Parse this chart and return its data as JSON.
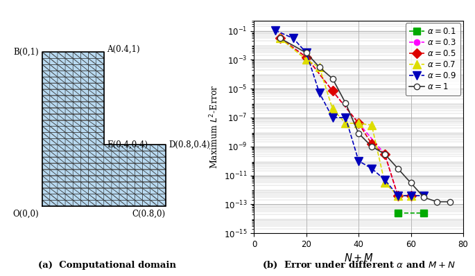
{
  "left_panel": {
    "mesh_color": "#b8d9f0",
    "mesh_edge_color": "#2a2a2a",
    "caption": "(a)  Computational domain"
  },
  "right_panel": {
    "series": [
      {
        "label": "$\\alpha = 0.1$",
        "color": "#00aa00",
        "marker": "s",
        "linestyle": "--",
        "x": [
          55,
          65
        ],
        "y": [
          2.5e-14,
          2.5e-14
        ],
        "mfc": "#00aa00"
      },
      {
        "label": "$\\alpha = 0.3$",
        "color": "#ff00ff",
        "marker": "o",
        "linestyle": "--",
        "x": [
          10,
          20,
          30,
          40,
          50,
          55,
          60
        ],
        "y": [
          0.03,
          0.0015,
          7e-06,
          4e-08,
          3e-10,
          4e-13,
          4e-13
        ],
        "mfc": "#ff00ff"
      },
      {
        "label": "$\\alpha = 0.5$",
        "color": "#dd0000",
        "marker": "D",
        "linestyle": "--",
        "x": [
          10,
          20,
          30,
          40,
          45,
          50,
          55,
          60
        ],
        "y": [
          0.03,
          0.0015,
          7e-06,
          4e-08,
          1.5e-09,
          3e-10,
          4e-13,
          4e-13
        ],
        "mfc": "#dd0000"
      },
      {
        "label": "$\\alpha = 0.7$",
        "color": "#dddd00",
        "marker": "^",
        "linestyle": "--",
        "x": [
          10,
          20,
          25,
          30,
          35,
          40,
          45,
          50,
          55,
          60
        ],
        "y": [
          0.03,
          0.001,
          0.0003,
          4e-07,
          4e-08,
          4e-08,
          3e-08,
          3e-12,
          4e-13,
          4e-13
        ],
        "mfc": "#dddd00"
      },
      {
        "label": "$\\alpha = 0.9$",
        "color": "#0000bb",
        "marker": "v",
        "linestyle": "--",
        "x": [
          8,
          15,
          20,
          25,
          30,
          35,
          40,
          45,
          50,
          55,
          60,
          65
        ],
        "y": [
          0.11,
          0.03,
          0.003,
          5e-06,
          1e-07,
          1e-07,
          1e-10,
          3e-11,
          5e-12,
          4e-13,
          4e-13,
          4e-13
        ],
        "mfc": "#0000bb"
      },
      {
        "label": "$\\alpha = 1$",
        "color": "#333333",
        "marker": "o",
        "linestyle": "-",
        "x": [
          10,
          20,
          25,
          30,
          35,
          40,
          45,
          50,
          55,
          60,
          65,
          70,
          75
        ],
        "y": [
          0.03,
          0.003,
          0.0003,
          5e-05,
          1e-06,
          8e-09,
          1e-09,
          3e-10,
          3e-11,
          3e-12,
          3e-13,
          1.5e-13,
          1.5e-13
        ],
        "mfc": "white"
      }
    ],
    "xlabel": "$N + M$",
    "ylabel": "Maximum $L^2$-Error",
    "xlim": [
      0,
      80
    ],
    "caption": "(b)  Error under different $\\alpha$ and $M + N$"
  }
}
